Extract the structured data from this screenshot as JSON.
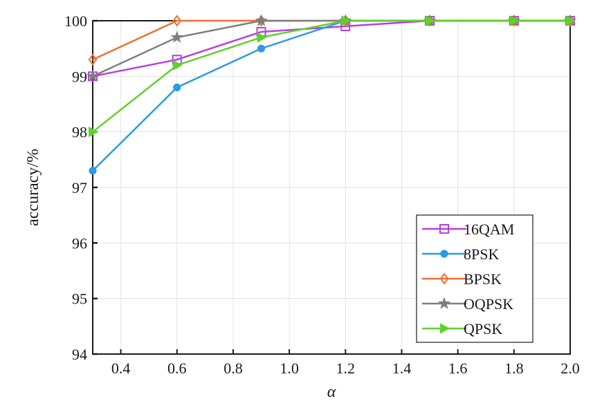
{
  "chart_data": {
    "type": "line",
    "title": "",
    "xlabel": "α",
    "ylabel": "accuracy/%",
    "x": [
      0.3,
      0.6,
      0.9,
      1.2,
      1.5,
      1.8,
      2.0
    ],
    "xlim": [
      0.3,
      2.0
    ],
    "ylim": [
      94,
      100
    ],
    "xticks": [
      0.4,
      0.6,
      0.8,
      1.0,
      1.2,
      1.4,
      1.6,
      1.8,
      2.0
    ],
    "xtick_labels": [
      "0.4",
      "0.6",
      "0.8",
      "1.0",
      "1.2",
      "1.4",
      "1.6",
      "1.8",
      "2.0"
    ],
    "yticks": [
      94,
      95,
      96,
      97,
      98,
      99,
      100
    ],
    "ytick_labels": [
      "94",
      "95",
      "96",
      "97",
      "98",
      "99",
      "100"
    ],
    "grid": true,
    "legend_position": "bottom-right",
    "series": [
      {
        "name": "16QAM",
        "color": "#b83fe0",
        "marker": "square",
        "values": [
          99.0,
          99.3,
          99.8,
          99.9,
          100.0,
          100.0,
          100.0
        ]
      },
      {
        "name": "8PSK",
        "color": "#2a9ae6",
        "marker": "circle",
        "values": [
          97.3,
          98.8,
          99.5,
          100.0,
          100.0,
          100.0,
          100.0
        ]
      },
      {
        "name": "BPSK",
        "color": "#f07030",
        "marker": "diamond",
        "values": [
          99.3,
          100.0,
          100.0,
          100.0,
          100.0,
          100.0,
          100.0
        ]
      },
      {
        "name": "OQPSK",
        "color": "#7f7f7f",
        "marker": "star",
        "values": [
          99.0,
          99.7,
          100.0,
          100.0,
          100.0,
          100.0,
          100.0
        ]
      },
      {
        "name": "QPSK",
        "color": "#5fd22a",
        "marker": "triangle-right",
        "values": [
          98.0,
          99.2,
          99.7,
          100.0,
          100.0,
          100.0,
          100.0
        ]
      }
    ]
  }
}
